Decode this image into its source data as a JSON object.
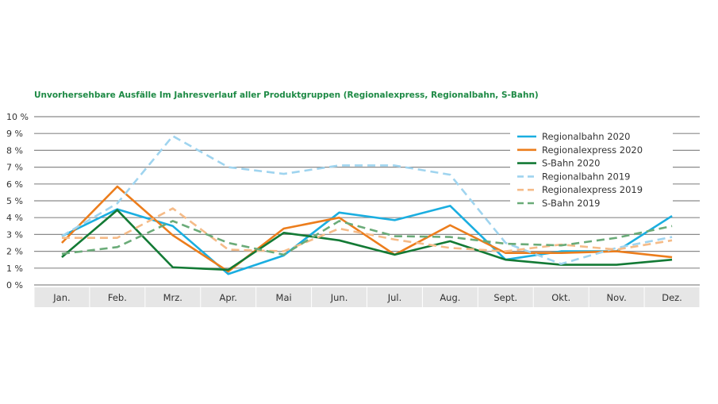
{
  "chart_data": {
    "type": "line",
    "title": "Unvorhersehbare Ausfälle Im Jahresverlauf aller Produktgruppen (Regionalexpress, Regionalbahn, S-Bahn)",
    "xlabel": "",
    "ylabel": "",
    "categories": [
      "Jan.",
      "Feb.",
      "Mrz.",
      "Apr.",
      "Mai",
      "Jun.",
      "Jul.",
      "Aug.",
      "Sept.",
      "Okt.",
      "Nov.",
      "Dez."
    ],
    "ylim": [
      0,
      10
    ],
    "yticks": [
      "0 %",
      "1 %",
      "2 %",
      "3 %",
      "4 %",
      "5 %",
      "6 %",
      "7 %",
      "8 %",
      "9 %",
      "10 %"
    ],
    "grid": true,
    "legend_position": "top-right",
    "series": [
      {
        "name": "Regionalbahn  2020",
        "color": "#1aaee0",
        "dashed": false,
        "values": [
          2.9,
          4.5,
          3.5,
          0.65,
          1.75,
          4.3,
          3.85,
          4.7,
          1.5,
          2.0,
          2.0,
          4.1
        ]
      },
      {
        "name": "Regionalexpress 2020",
        "color": "#ec7d1c",
        "dashed": false,
        "values": [
          2.5,
          5.85,
          2.95,
          0.8,
          3.35,
          4.0,
          1.8,
          3.55,
          1.9,
          1.9,
          2.0,
          1.65
        ]
      },
      {
        "name": "S-Bahn 2020",
        "color": "#137a35",
        "dashed": false,
        "values": [
          1.65,
          4.45,
          1.05,
          0.9,
          3.1,
          2.65,
          1.8,
          2.6,
          1.5,
          1.2,
          1.2,
          1.5
        ]
      },
      {
        "name": "Regionalbahn  2019",
        "color": "#9fd4ef",
        "dashed": true,
        "values": [
          2.9,
          4.85,
          8.85,
          7.0,
          6.6,
          7.1,
          7.1,
          6.55,
          2.5,
          1.25,
          2.2,
          2.85
        ]
      },
      {
        "name": "Regionalexpress 2019",
        "color": "#f5bb88",
        "dashed": true,
        "values": [
          2.8,
          2.8,
          4.55,
          2.1,
          2.0,
          3.35,
          2.7,
          2.2,
          2.0,
          2.4,
          2.1,
          2.65
        ]
      },
      {
        "name": "S-Bahn 2019",
        "color": "#6aab78",
        "dashed": true,
        "values": [
          1.85,
          2.25,
          3.8,
          2.5,
          1.8,
          3.8,
          2.9,
          2.85,
          2.45,
          2.35,
          2.8,
          3.5
        ]
      }
    ]
  }
}
